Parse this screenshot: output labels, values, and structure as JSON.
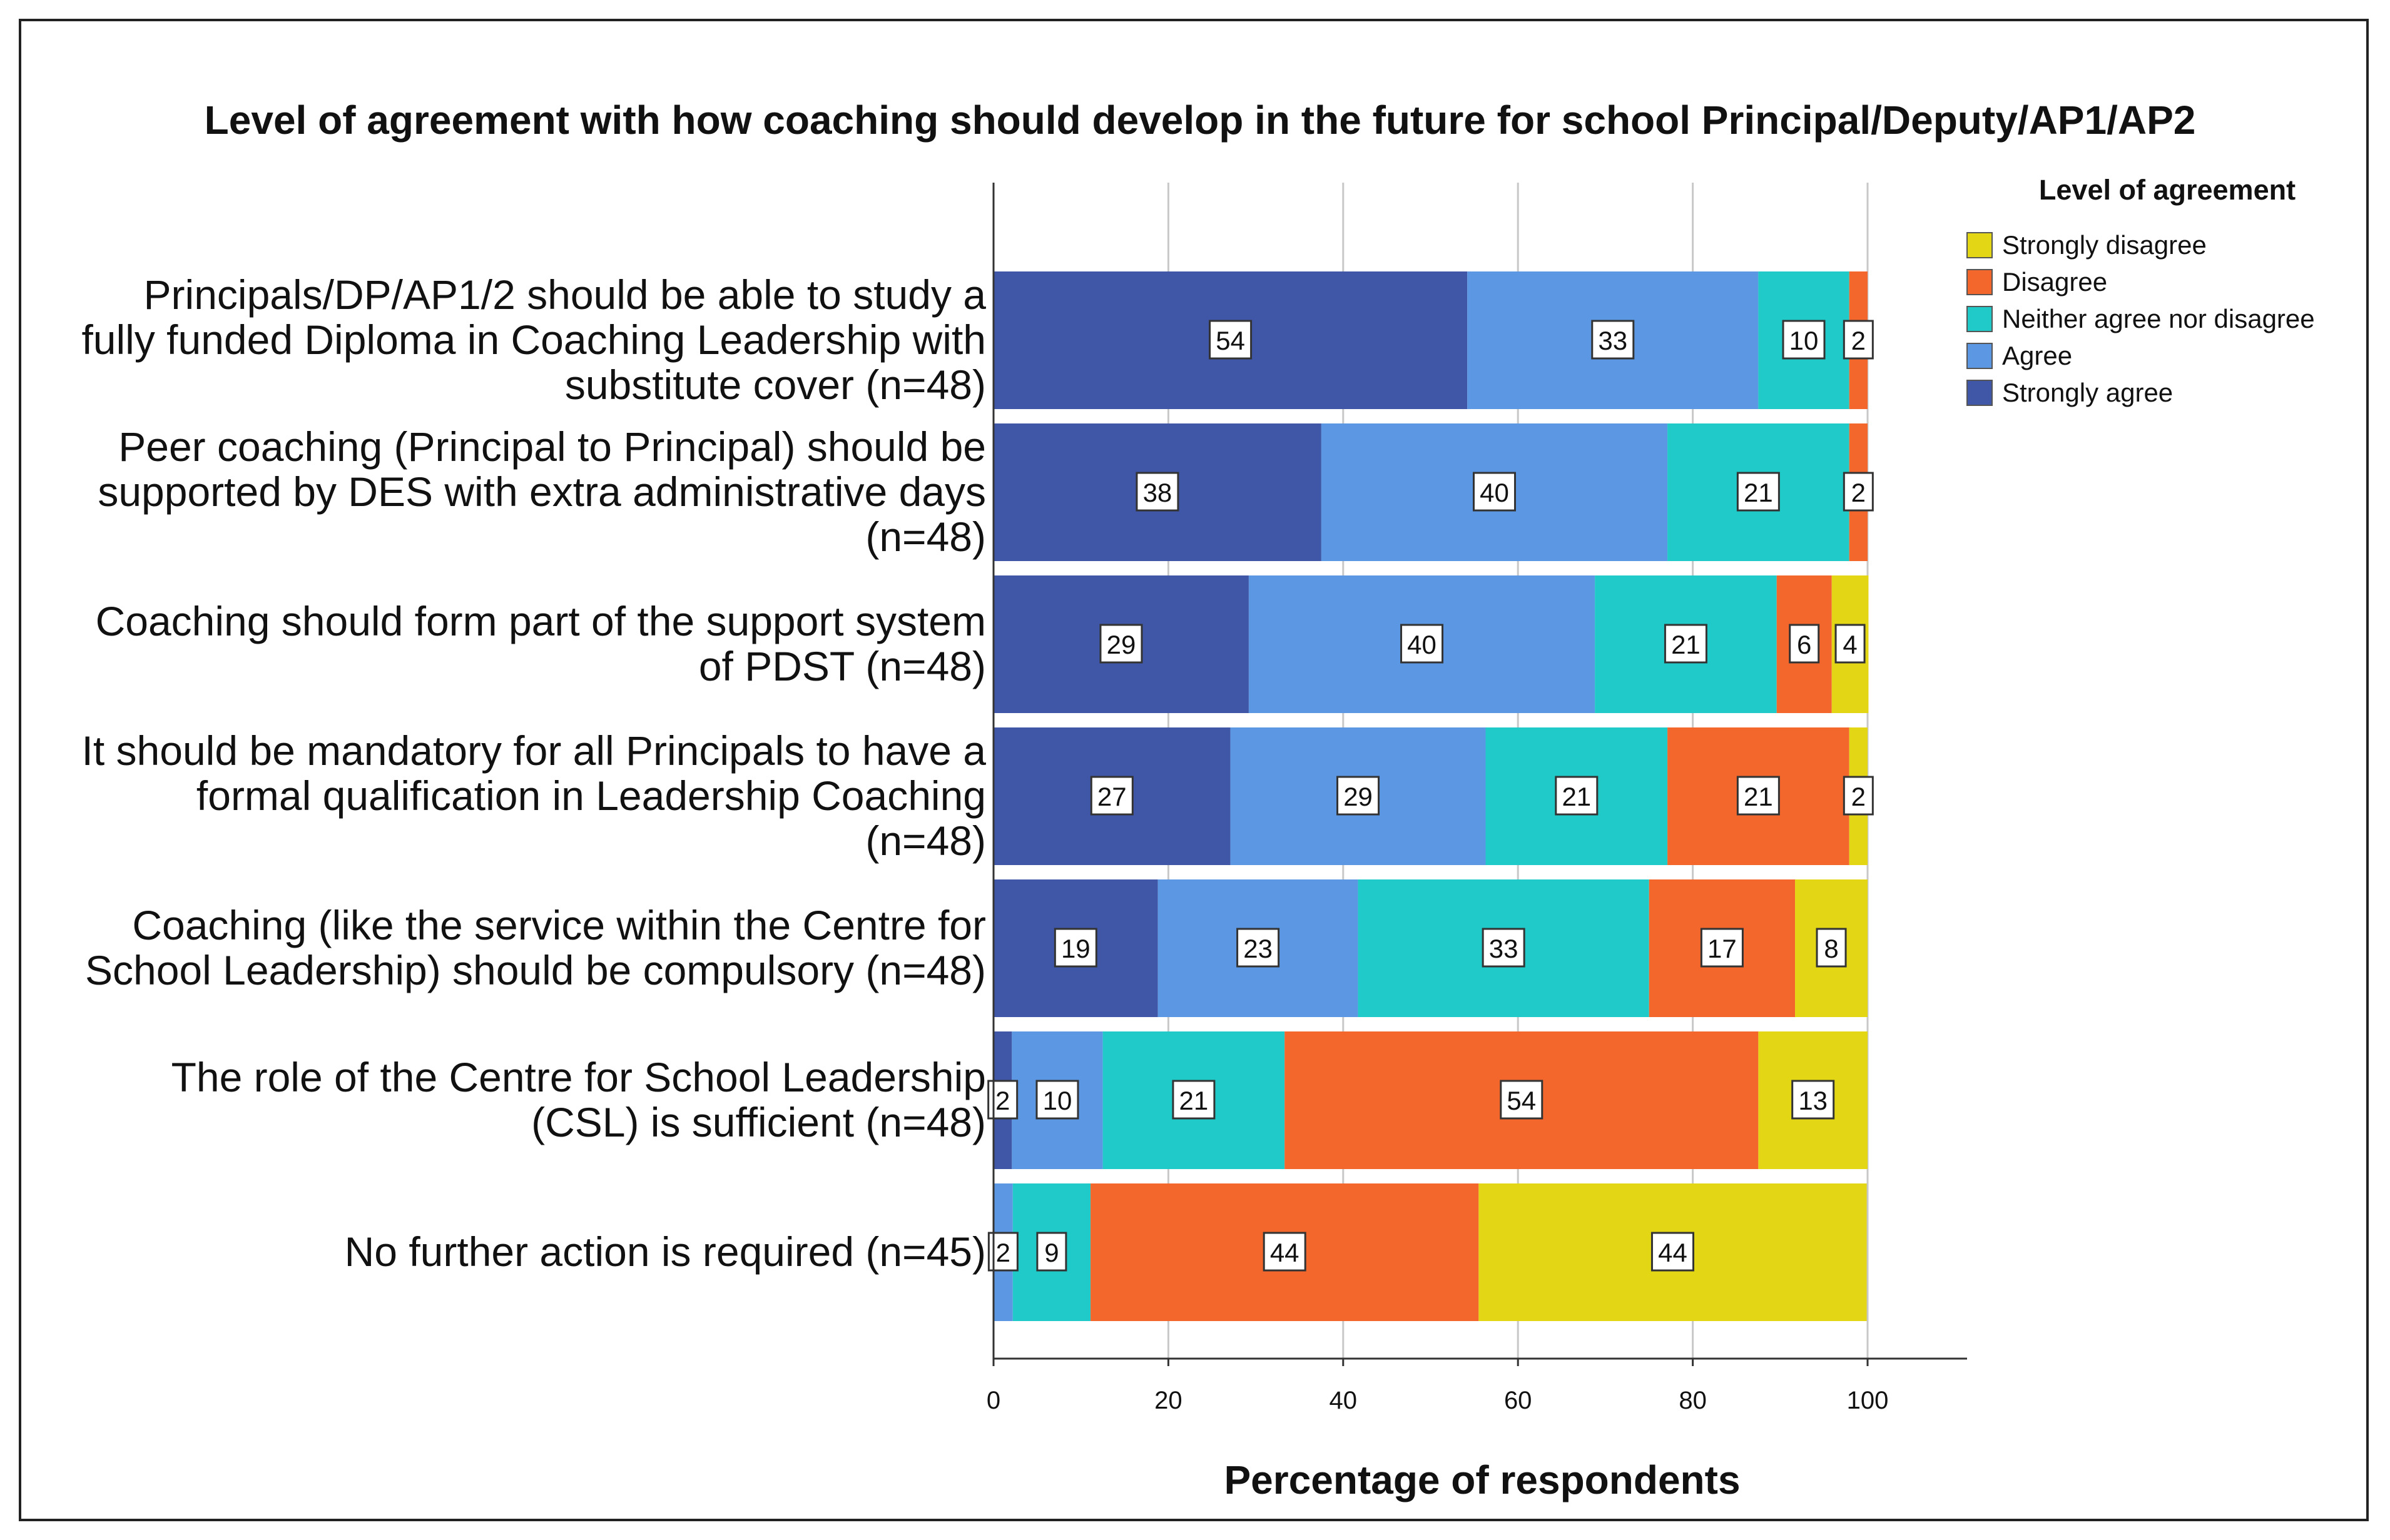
{
  "chart_data": {
    "type": "bar",
    "orientation": "horizontal",
    "stacked": true,
    "title": "Level of agreement with how coaching should develop in the future for school Principal/Deputy/AP1/AP2",
    "xlabel": "Percentage of respondents",
    "ylabel": "",
    "xlim": [
      0,
      110
    ],
    "xticks": [
      0,
      20,
      40,
      60,
      80,
      100
    ],
    "grid": true,
    "legend_title": "Level of agreement",
    "legend_position": "right",
    "categories": [
      [
        "Principals/DP/AP1/2 should be able to study a",
        "fully funded Diploma in Coaching Leadership with",
        "substitute cover (n=48)"
      ],
      [
        "Peer coaching (Principal to Principal) should be",
        "supported by DES with extra administrative days",
        "(n=48)"
      ],
      [
        "Coaching should form part of the support system",
        "of PDST (n=48)"
      ],
      [
        "It should be mandatory for all Principals to have a",
        "formal qualification in Leadership Coaching",
        "(n=48)"
      ],
      [
        "Coaching (like the service within the Centre for",
        "School Leadership) should be compulsory (n=48)"
      ],
      [
        "The role of the Centre for School Leadership",
        "(CSL) is sufficient  (n=48)"
      ],
      [
        "No further action is required (n=45)"
      ]
    ],
    "series": [
      {
        "name": "Strongly agree",
        "color": "#3f57a6",
        "values": [
          54.2,
          37.5,
          29.2,
          27.1,
          18.8,
          2.1,
          0
        ],
        "labels": [
          "54",
          "38",
          "29",
          "27",
          "19",
          "2",
          ""
        ]
      },
      {
        "name": "Agree",
        "color": "#5b97e3",
        "values": [
          33.3,
          39.6,
          39.6,
          29.2,
          22.9,
          10.4,
          2.2
        ],
        "labels": [
          "33",
          "40",
          "40",
          "29",
          "23",
          "10",
          "2"
        ]
      },
      {
        "name": "Neither agree nor disagree",
        "color": "#1fcac8",
        "values": [
          10.4,
          20.8,
          20.8,
          20.8,
          33.3,
          20.8,
          8.9
        ],
        "labels": [
          "10",
          "21",
          "21",
          "21",
          "33",
          "21",
          "9"
        ]
      },
      {
        "name": "Disagree",
        "color": "#f3672c",
        "values": [
          2.1,
          2.1,
          6.3,
          20.8,
          16.7,
          54.2,
          44.4
        ],
        "labels": [
          "2",
          "2",
          "6",
          "21",
          "17",
          "54",
          "44"
        ]
      },
      {
        "name": "Strongly disagree",
        "color": "#e2d615",
        "values": [
          0,
          0,
          4.2,
          2.1,
          8.3,
          12.5,
          44.4
        ],
        "labels": [
          "",
          "",
          "4",
          "2",
          "8",
          "13",
          "44"
        ]
      }
    ],
    "legend_order": [
      "Strongly disagree",
      "Disagree",
      "Neither agree nor disagree",
      "Agree",
      "Strongly agree"
    ]
  }
}
